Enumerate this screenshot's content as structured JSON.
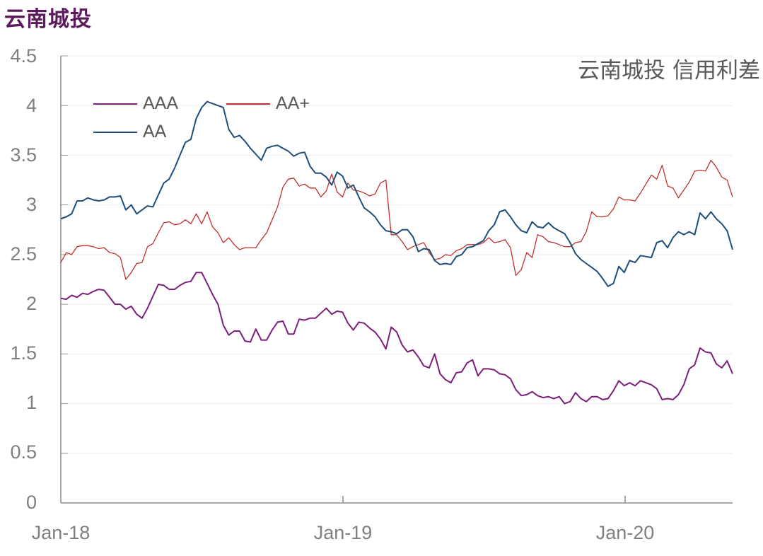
{
  "header": {
    "title": "云南城投"
  },
  "chart_data": {
    "type": "line",
    "title": "云南城投 信用利差",
    "xlabel": "",
    "ylabel": "",
    "ylim": [
      0,
      4.5
    ],
    "yticks": [
      "0",
      "0.5",
      "1",
      "1.5",
      "2",
      "2.5",
      "3",
      "3.5",
      "4",
      "4.5"
    ],
    "xticks": [
      "Jan-18",
      "Jan-19",
      "Jan-20"
    ],
    "x_range": [
      "2018-01",
      "2020-05"
    ],
    "grid": true,
    "legend_position": "upper-left",
    "series": [
      {
        "name": "AAA",
        "color": "#7b1f7b",
        "values": [
          2.06,
          2.05,
          2.09,
          2.07,
          2.11,
          2.1,
          2.13,
          2.15,
          2.14,
          2.07,
          2.0,
          2.0,
          1.95,
          1.98,
          1.9,
          1.86,
          1.96,
          2.08,
          2.2,
          2.19,
          2.15,
          2.15,
          2.19,
          2.22,
          2.23,
          2.32,
          2.32,
          2.21,
          2.1,
          2.0,
          1.79,
          1.69,
          1.73,
          1.73,
          1.63,
          1.62,
          1.75,
          1.64,
          1.64,
          1.74,
          1.82,
          1.83,
          1.7,
          1.7,
          1.85,
          1.84,
          1.86,
          1.86,
          1.91,
          1.96,
          1.9,
          1.93,
          1.92,
          1.81,
          1.74,
          1.82,
          1.81,
          1.76,
          1.72,
          1.65,
          1.55,
          1.77,
          1.72,
          1.59,
          1.52,
          1.54,
          1.47,
          1.38,
          1.36,
          1.5,
          1.3,
          1.24,
          1.21,
          1.31,
          1.32,
          1.41,
          1.44,
          1.28,
          1.35,
          1.35,
          1.34,
          1.3,
          1.29,
          1.25,
          1.14,
          1.08,
          1.09,
          1.12,
          1.08,
          1.06,
          1.07,
          1.05,
          1.07,
          1.0,
          1.02,
          1.11,
          1.05,
          1.02,
          1.07,
          1.07,
          1.04,
          1.05,
          1.13,
          1.23,
          1.18,
          1.21,
          1.18,
          1.23,
          1.21,
          1.19,
          1.15,
          1.04,
          1.05,
          1.04,
          1.09,
          1.19,
          1.35,
          1.39,
          1.56,
          1.52,
          1.51,
          1.4,
          1.36,
          1.43,
          1.3
        ]
      },
      {
        "name": "AA+",
        "color": "#c0302f",
        "values": [
          2.42,
          2.52,
          2.5,
          2.58,
          2.59,
          2.59,
          2.58,
          2.56,
          2.57,
          2.52,
          2.51,
          2.47,
          2.25,
          2.32,
          2.41,
          2.42,
          2.58,
          2.61,
          2.72,
          2.82,
          2.83,
          2.8,
          2.81,
          2.85,
          2.81,
          2.91,
          2.81,
          2.93,
          2.78,
          2.72,
          2.62,
          2.67,
          2.6,
          2.55,
          2.57,
          2.57,
          2.57,
          2.65,
          2.72,
          2.85,
          2.98,
          3.18,
          3.26,
          3.27,
          3.19,
          3.21,
          3.17,
          3.17,
          3.08,
          3.14,
          3.31,
          3.13,
          3.08,
          3.22,
          3.15,
          3.14,
          3.12,
          3.09,
          3.11,
          3.22,
          3.25,
          2.7,
          2.7,
          2.63,
          2.55,
          2.58,
          2.6,
          2.62,
          2.52,
          2.45,
          2.46,
          2.5,
          2.49,
          2.54,
          2.56,
          2.6,
          2.6,
          2.6,
          2.62,
          2.67,
          2.62,
          2.63,
          2.65,
          2.57,
          2.29,
          2.35,
          2.52,
          2.47,
          2.7,
          2.68,
          2.63,
          2.62,
          2.6,
          2.58,
          2.58,
          2.62,
          2.63,
          2.73,
          2.93,
          2.88,
          2.88,
          2.89,
          2.96,
          3.08,
          3.05,
          3.05,
          3.04,
          3.12,
          3.21,
          3.3,
          3.26,
          3.4,
          3.19,
          3.17,
          3.07,
          3.15,
          3.23,
          3.34,
          3.35,
          3.34,
          3.45,
          3.38,
          3.28,
          3.25,
          3.08
        ]
      },
      {
        "name": "AA",
        "color": "#1f4e79",
        "values": [
          2.86,
          2.88,
          2.91,
          3.04,
          3.04,
          3.07,
          3.05,
          3.04,
          3.05,
          3.08,
          3.08,
          3.09,
          2.95,
          3.0,
          2.91,
          2.95,
          2.99,
          2.98,
          3.1,
          3.22,
          3.26,
          3.37,
          3.5,
          3.63,
          3.66,
          3.87,
          3.98,
          4.04,
          4.02,
          4.0,
          3.98,
          3.76,
          3.68,
          3.7,
          3.64,
          3.57,
          3.51,
          3.45,
          3.57,
          3.59,
          3.6,
          3.57,
          3.54,
          3.49,
          3.52,
          3.53,
          3.39,
          3.32,
          3.32,
          3.28,
          3.2,
          3.33,
          3.29,
          3.17,
          3.2,
          3.08,
          2.97,
          2.93,
          2.88,
          2.8,
          2.74,
          2.73,
          2.71,
          2.75,
          2.75,
          2.68,
          2.53,
          2.56,
          2.55,
          2.44,
          2.4,
          2.41,
          2.4,
          2.48,
          2.5,
          2.57,
          2.58,
          2.61,
          2.64,
          2.74,
          2.8,
          2.93,
          2.95,
          2.88,
          2.8,
          2.74,
          2.72,
          2.83,
          2.78,
          2.77,
          2.82,
          2.77,
          2.74,
          2.71,
          2.62,
          2.51,
          2.45,
          2.41,
          2.37,
          2.33,
          2.26,
          2.18,
          2.21,
          2.38,
          2.32,
          2.44,
          2.42,
          2.49,
          2.48,
          2.47,
          2.62,
          2.64,
          2.57,
          2.67,
          2.73,
          2.7,
          2.73,
          2.7,
          2.92,
          2.86,
          2.93,
          2.86,
          2.81,
          2.74,
          2.55
        ]
      }
    ]
  }
}
